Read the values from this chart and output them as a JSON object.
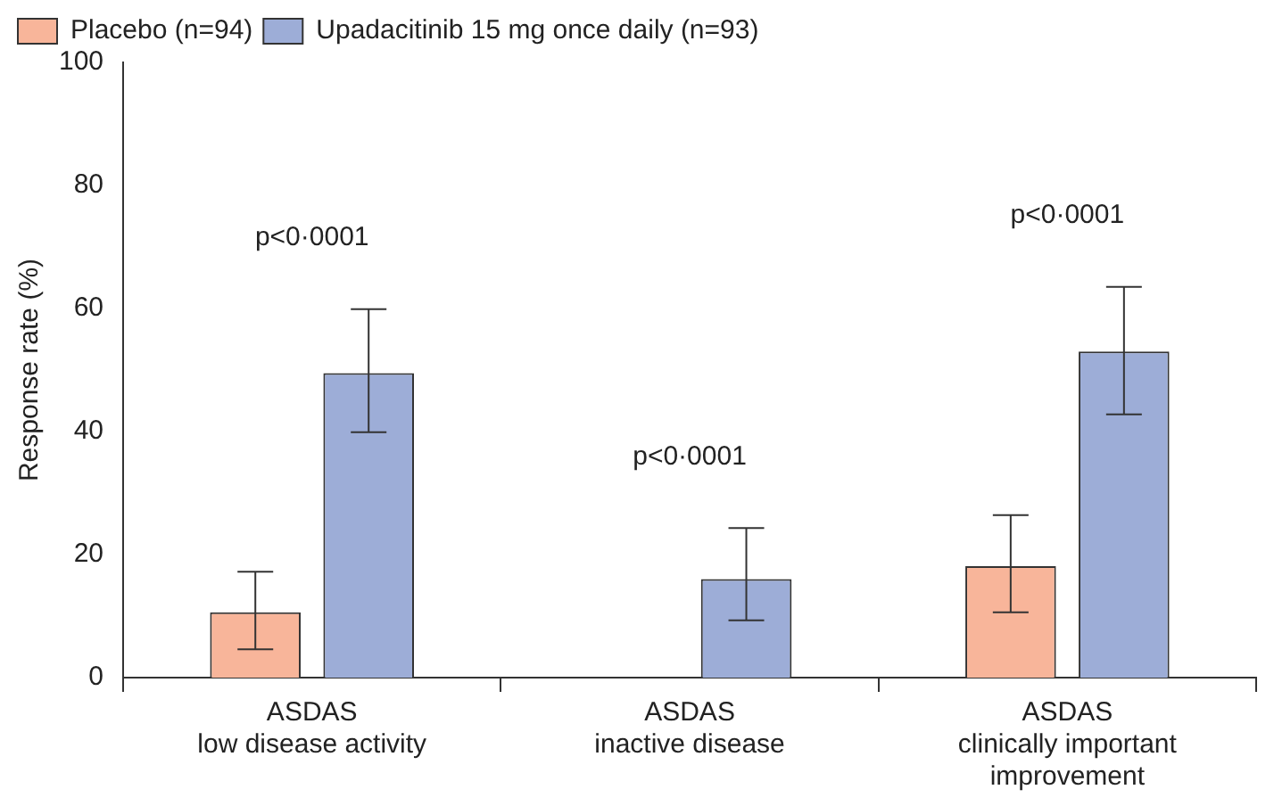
{
  "chart_data": {
    "type": "bar",
    "ylabel": "Response rate (%)",
    "categories": [
      "ASDAS\nlow disease activity",
      "ASDAS\ninactive disease",
      "ASDAS\nclinically important\nimprovement"
    ],
    "series": [
      {
        "name": "Placebo (n=94)",
        "color": "#f8b59a",
        "values": [
          10.6,
          0,
          18.1
        ],
        "errors": [
          [
            4.6,
            17.2
          ],
          null,
          [
            10.6,
            26.4
          ]
        ]
      },
      {
        "name": "Upadacitinib 15 mg once daily (n=93)",
        "color": "#9dadd7",
        "values": [
          49.5,
          16.0,
          53.0
        ],
        "errors": [
          [
            39.9,
            59.9
          ],
          [
            9.3,
            24.3
          ],
          [
            42.8,
            63.5
          ]
        ]
      }
    ],
    "annotations": [
      "p<0·0001",
      "p<0·0001",
      "p<0·0001"
    ],
    "ylim": [
      0,
      100
    ],
    "yticks": [
      0,
      20,
      40,
      60,
      80,
      100
    ],
    "grid": false,
    "legend": "top left"
  }
}
